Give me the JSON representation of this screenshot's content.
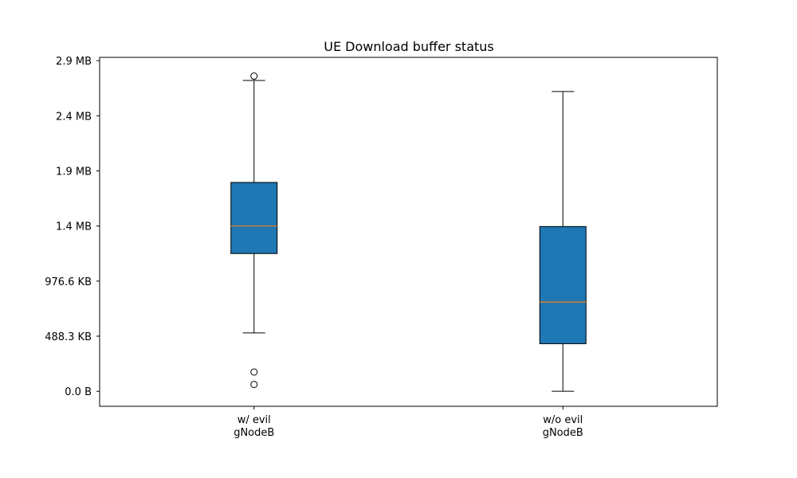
{
  "chart_data": {
    "type": "box",
    "title": "UE Download buffer status",
    "xlabel": "",
    "ylabel": "",
    "y_unit": "bytes",
    "ylim": [
      -136000,
      3030000
    ],
    "y_ticks": [
      {
        "value": 0,
        "label": "0.0 B"
      },
      {
        "value": 500000,
        "label": "488.3 KB"
      },
      {
        "value": 1000000,
        "label": "976.6 KB"
      },
      {
        "value": 1500000,
        "label": "1.4 MB"
      },
      {
        "value": 2000000,
        "label": "1.9 MB"
      },
      {
        "value": 2500000,
        "label": "2.4 MB"
      },
      {
        "value": 3000000,
        "label": "2.9 MB"
      }
    ],
    "boxes": [
      {
        "category": [
          "w/ evil",
          "gNodeB"
        ],
        "whisker_low": 530000,
        "q1": 1250000,
        "median": 1500000,
        "q3": 1895000,
        "whisker_high": 2820000,
        "fliers": [
          175000,
          62000,
          2860000
        ]
      },
      {
        "category": [
          "w/o evil",
          "gNodeB"
        ],
        "whisker_low": 0,
        "q1": 432000,
        "median": 810000,
        "q3": 1495000,
        "whisker_high": 2720000,
        "fliers": []
      }
    ],
    "colors": {
      "box_fill": "#1f77b4",
      "median": "#ff7f0e"
    },
    "grid": false,
    "legend": "none"
  }
}
